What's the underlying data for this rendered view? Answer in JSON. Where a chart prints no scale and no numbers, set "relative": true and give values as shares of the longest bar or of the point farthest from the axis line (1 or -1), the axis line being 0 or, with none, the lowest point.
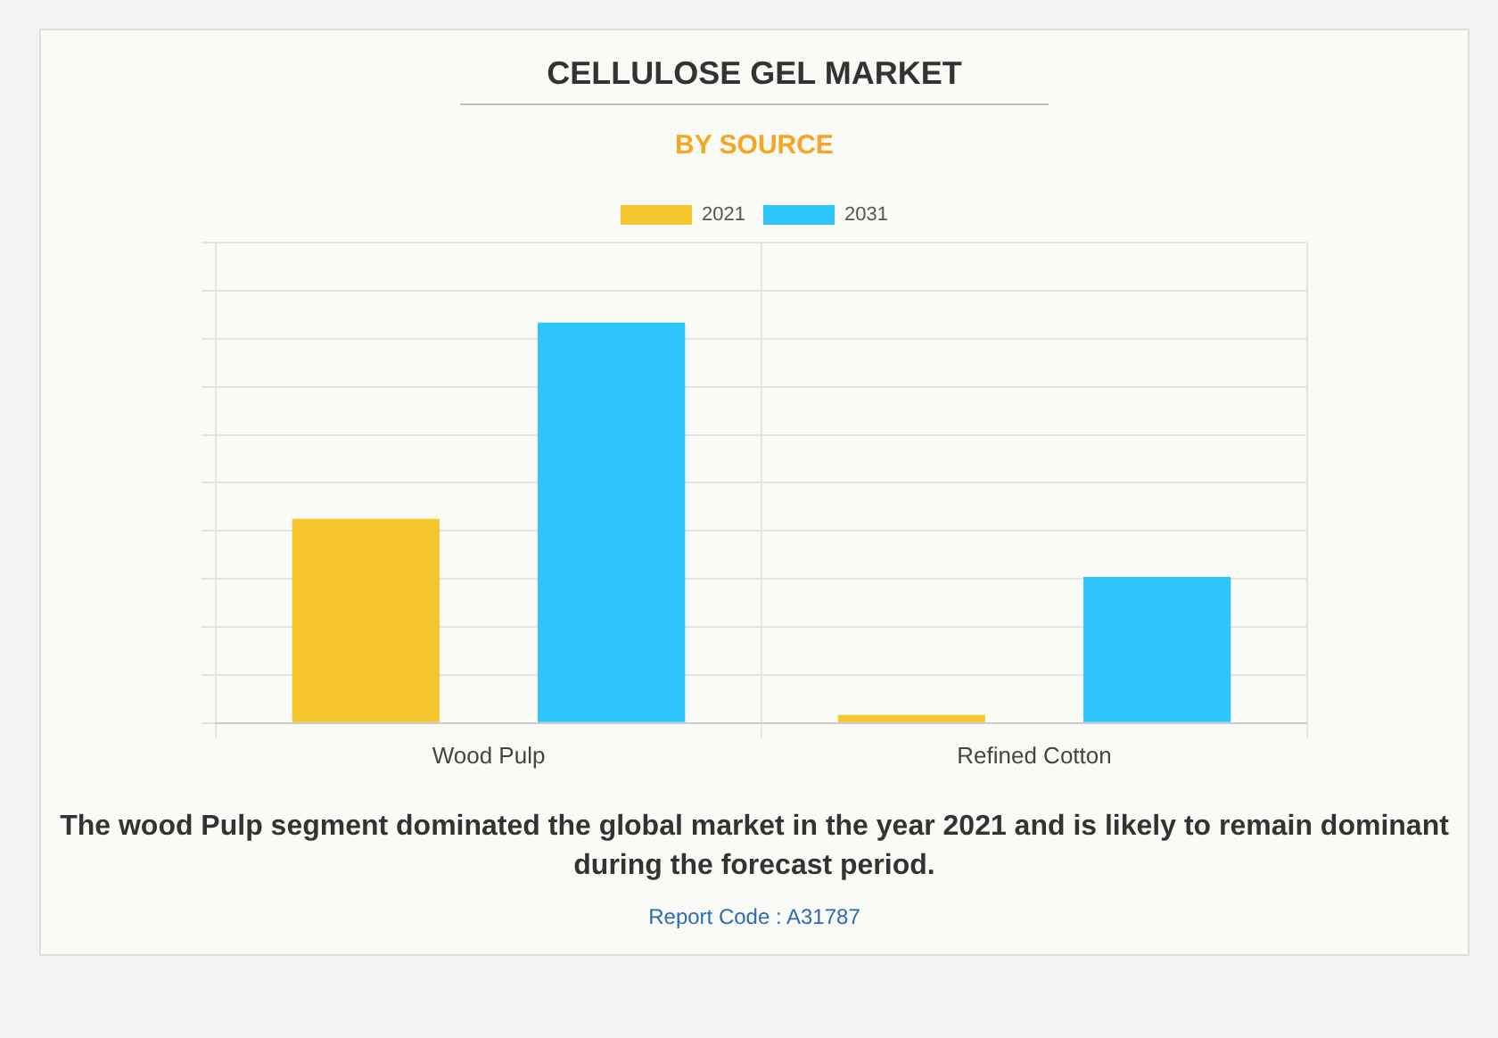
{
  "chart_data": {
    "type": "bar",
    "title": "CELLULOSE GEL MARKET",
    "subtitle": "BY SOURCE",
    "categories": [
      "Wood Pulp",
      "Refined Cotton"
    ],
    "series": [
      {
        "name": "2021",
        "color": "#f5c62e",
        "values": [
          0.51,
          0.02
        ]
      },
      {
        "name": "2031",
        "color": "#2ec5fc",
        "values": [
          1,
          0.365
        ]
      }
    ],
    "relative": true,
    "grid": true,
    "legend": "top",
    "annotations": [
      "The wood Pulp segment dominated the global market in the year 2021 and is likely to remain dominant during the forecast period.",
      "Report Code : A31787"
    ]
  }
}
